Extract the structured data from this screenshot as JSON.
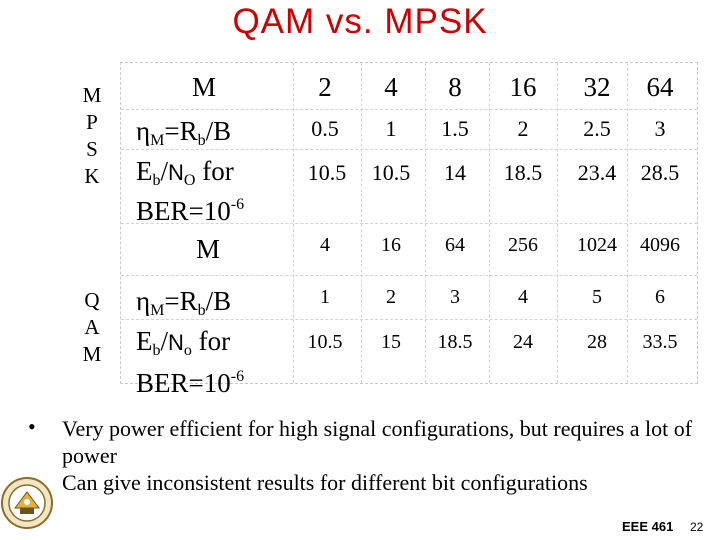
{
  "title": "QAM vs. MPSK",
  "mpsk": {
    "side_label": [
      "M",
      "P",
      "S",
      "K"
    ],
    "label_m": "M",
    "label_eta": "η",
    "label_eta_sub": "M",
    "label_eta_rest": "=R",
    "label_eta_sub2": "b",
    "label_eta_end": "/B",
    "label_eb": "E",
    "label_eb_sub": "b",
    "label_eb_slash": "/",
    "label_no": "N",
    "label_no_sub": "O",
    "label_eb_for": " for",
    "label_ber": "BER=10",
    "label_ber_exp": "-6",
    "m_values": [
      "2",
      "4",
      "8",
      "16",
      "32",
      "64"
    ],
    "eta_values": [
      "0.5",
      "1",
      "1.5",
      "2",
      "2.5",
      "3"
    ],
    "ebno_values": [
      "10.5",
      "10.5",
      "14",
      "18.5",
      "23.4",
      "28.5"
    ]
  },
  "qam": {
    "side_label": [
      "Q",
      "A",
      "M"
    ],
    "label_m": "M",
    "label_eta": "η",
    "label_eta_sub": "M",
    "label_eta_rest": "=R",
    "label_eta_sub2": "b",
    "label_eta_end": "/B",
    "label_eb": "E",
    "label_eb_sub": "b",
    "label_eb_slash": "/",
    "label_no": "N",
    "label_no_sub": "o",
    "label_eb_for": " for",
    "label_ber": "BER=10",
    "label_ber_exp": "-6",
    "m_values": [
      "4",
      "16",
      "64",
      "256",
      "1024",
      "4096"
    ],
    "eta_values": [
      "1",
      "2",
      "3",
      "4",
      "5",
      "6"
    ],
    "ebno_values": [
      "10.5",
      "15",
      "18.5",
      "24",
      "28",
      "33.5"
    ]
  },
  "bullets": [
    "Very power efficient for high signal configurations, but requires a lot of power",
    "Can give inconsistent results for different bit configurations"
  ],
  "bullet_symbol": "•",
  "footer": {
    "course": "EEE 461",
    "page": "22"
  },
  "colors": {
    "title": "#cc0000",
    "text": "#000000",
    "grid": "#d3d3d3"
  },
  "logo": {
    "icon": "university-seal-icon"
  }
}
